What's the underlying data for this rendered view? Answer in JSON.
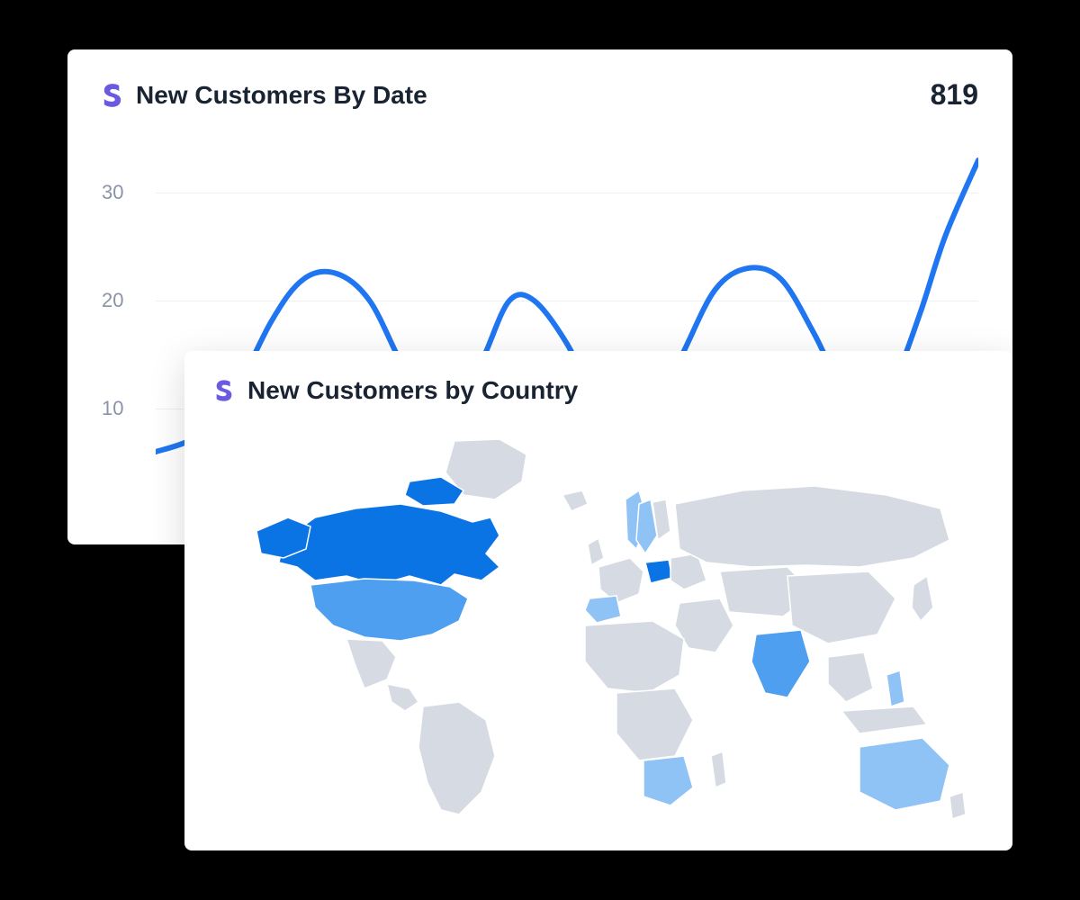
{
  "colors": {
    "page_bg": "#000000",
    "card_bg": "#ffffff",
    "title_text": "#1a2332",
    "axis_text": "#8a94a6",
    "grid_line": "#eef0f3",
    "line_stroke": "#1f76f0",
    "logo": "#6a5ae0",
    "map_neutral": "#d6dbe3",
    "map_light": "#8fc3f5",
    "map_mid": "#4f9ff0",
    "map_dark": "#0b74e5"
  },
  "card_back": {
    "title": "New Customers By Date",
    "metric": "819",
    "chart": {
      "type": "line",
      "line_color": "#1f76f0",
      "line_width": 6,
      "y_ticks": [
        10,
        20,
        30
      ],
      "ylim": [
        0,
        35
      ],
      "grid": true,
      "data": [
        {
          "x": 0.0,
          "y": 6
        },
        {
          "x": 0.04,
          "y": 7
        },
        {
          "x": 0.08,
          "y": 9
        },
        {
          "x": 0.14,
          "y": 18
        },
        {
          "x": 0.18,
          "y": 22
        },
        {
          "x": 0.22,
          "y": 22.5
        },
        {
          "x": 0.26,
          "y": 20
        },
        {
          "x": 0.3,
          "y": 14
        },
        {
          "x": 0.34,
          "y": 9
        },
        {
          "x": 0.37,
          "y": 10
        },
        {
          "x": 0.4,
          "y": 15
        },
        {
          "x": 0.43,
          "y": 20
        },
        {
          "x": 0.46,
          "y": 20
        },
        {
          "x": 0.5,
          "y": 16
        },
        {
          "x": 0.54,
          "y": 10
        },
        {
          "x": 0.57,
          "y": 8
        },
        {
          "x": 0.6,
          "y": 9
        },
        {
          "x": 0.64,
          "y": 15
        },
        {
          "x": 0.68,
          "y": 21
        },
        {
          "x": 0.72,
          "y": 23
        },
        {
          "x": 0.76,
          "y": 22
        },
        {
          "x": 0.8,
          "y": 17
        },
        {
          "x": 0.84,
          "y": 11
        },
        {
          "x": 0.87,
          "y": 10
        },
        {
          "x": 0.9,
          "y": 13
        },
        {
          "x": 0.93,
          "y": 19
        },
        {
          "x": 0.96,
          "y": 26
        },
        {
          "x": 1.0,
          "y": 33
        }
      ]
    }
  },
  "card_front": {
    "title": "New Customers by Country",
    "map": {
      "type": "choropleth",
      "neutral_color": "#d6dbe3",
      "highlights": [
        {
          "country": "Canada",
          "color": "#0b74e5"
        },
        {
          "country": "United States",
          "color": "#4f9ff0"
        },
        {
          "country": "Poland",
          "color": "#0b74e5"
        },
        {
          "country": "India",
          "color": "#4f9ff0"
        },
        {
          "country": "Australia",
          "color": "#8fc3f5"
        },
        {
          "country": "South Africa",
          "color": "#8fc3f5"
        },
        {
          "country": "Norway",
          "color": "#8fc3f5"
        },
        {
          "country": "Sweden",
          "color": "#8fc3f5"
        },
        {
          "country": "Spain",
          "color": "#8fc3f5"
        },
        {
          "country": "Philippines",
          "color": "#8fc3f5"
        }
      ]
    }
  }
}
